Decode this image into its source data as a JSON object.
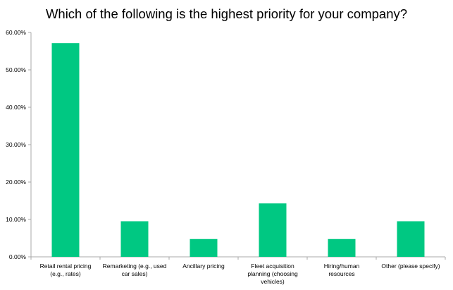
{
  "chart_data": {
    "type": "bar",
    "title": "Which of the following is the highest priority for your company?",
    "xlabel": "",
    "ylabel": "",
    "categories": [
      [
        "Retail rental pricing",
        "(e.g., rates)"
      ],
      [
        "Remarketing (e.g., used",
        "car sales)"
      ],
      [
        "Ancillary pricing"
      ],
      [
        "Fleet acquisition",
        "planning (choosing",
        "vehicles)"
      ],
      [
        "Hiring/human",
        "resources"
      ],
      [
        "Other (please specify)"
      ]
    ],
    "values": [
      57.14,
      9.52,
      4.76,
      14.29,
      4.76,
      9.52
    ],
    "ylim": [
      0,
      60
    ],
    "yticks": [
      0,
      10,
      20,
      30,
      40,
      50,
      60
    ],
    "ytick_labels": [
      "0.00%",
      "10.00%",
      "20.00%",
      "30.00%",
      "40.00%",
      "50.00%",
      "60.00%"
    ],
    "grid": false,
    "legend": "none",
    "bar_color": "#00c882",
    "axis_color": "#a8a8a8"
  }
}
